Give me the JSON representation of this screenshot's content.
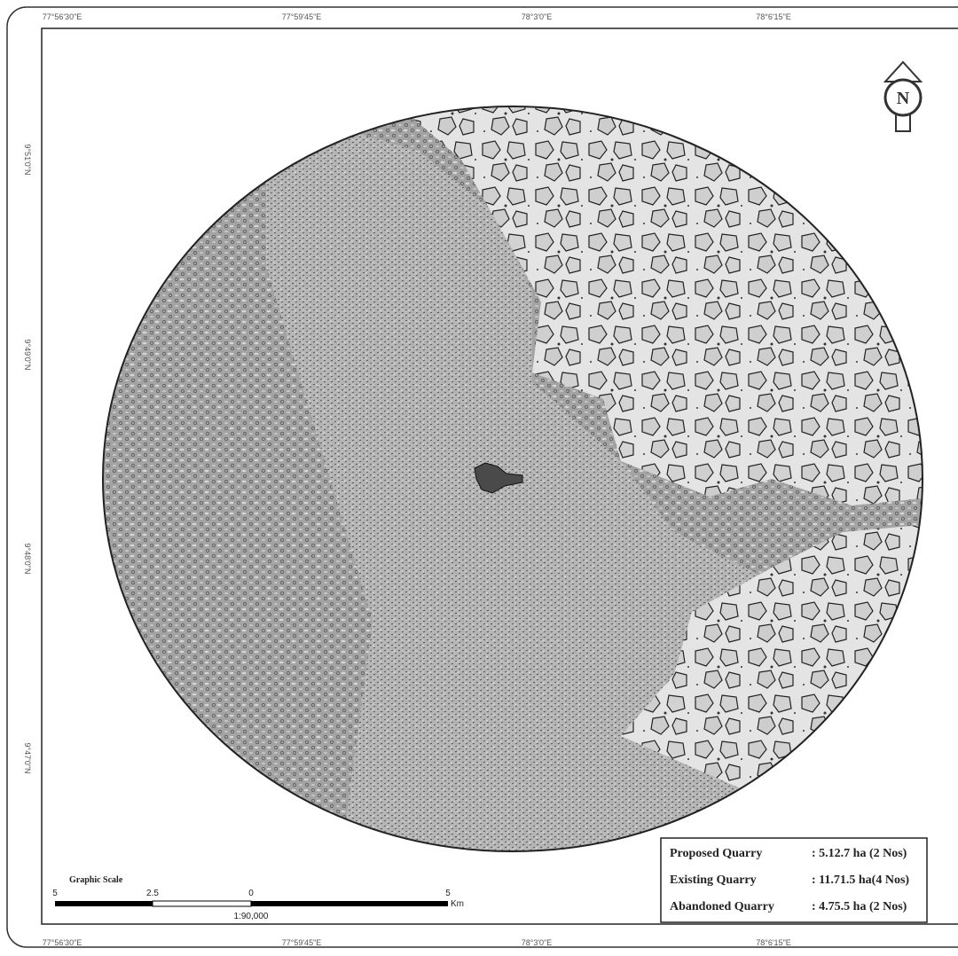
{
  "map": {
    "top_labels": [
      "77°56'30\"E",
      "77°59'45\"E",
      "78°3'0\"E",
      "78°6'15\"E"
    ],
    "bottom_labels": [
      "77°56'30\"E",
      "77°59'45\"E",
      "78°3'0\"E",
      "78°6'15\"E"
    ],
    "left_labels": [
      "9°51'0\"N",
      "9°49'0\"N",
      "9°48'0\"N",
      "9°47'0\"N"
    ],
    "north": "N",
    "legend": [
      {
        "label": "Proposed Quarry",
        "value": ": 5.12.7 ha (2 Nos)"
      },
      {
        "label": "Existing Quarry",
        "value": ": 11.71.5 ha(4 Nos)"
      },
      {
        "label": "Abandoned Quarry",
        "value": ": 4.75.5 ha (2 Nos)"
      }
    ],
    "scale": {
      "title": "Graphic Scale",
      "ticks": [
        "5",
        "2.5",
        "0",
        "5"
      ],
      "unit": "Km",
      "ratio": "1:90,000"
    }
  }
}
